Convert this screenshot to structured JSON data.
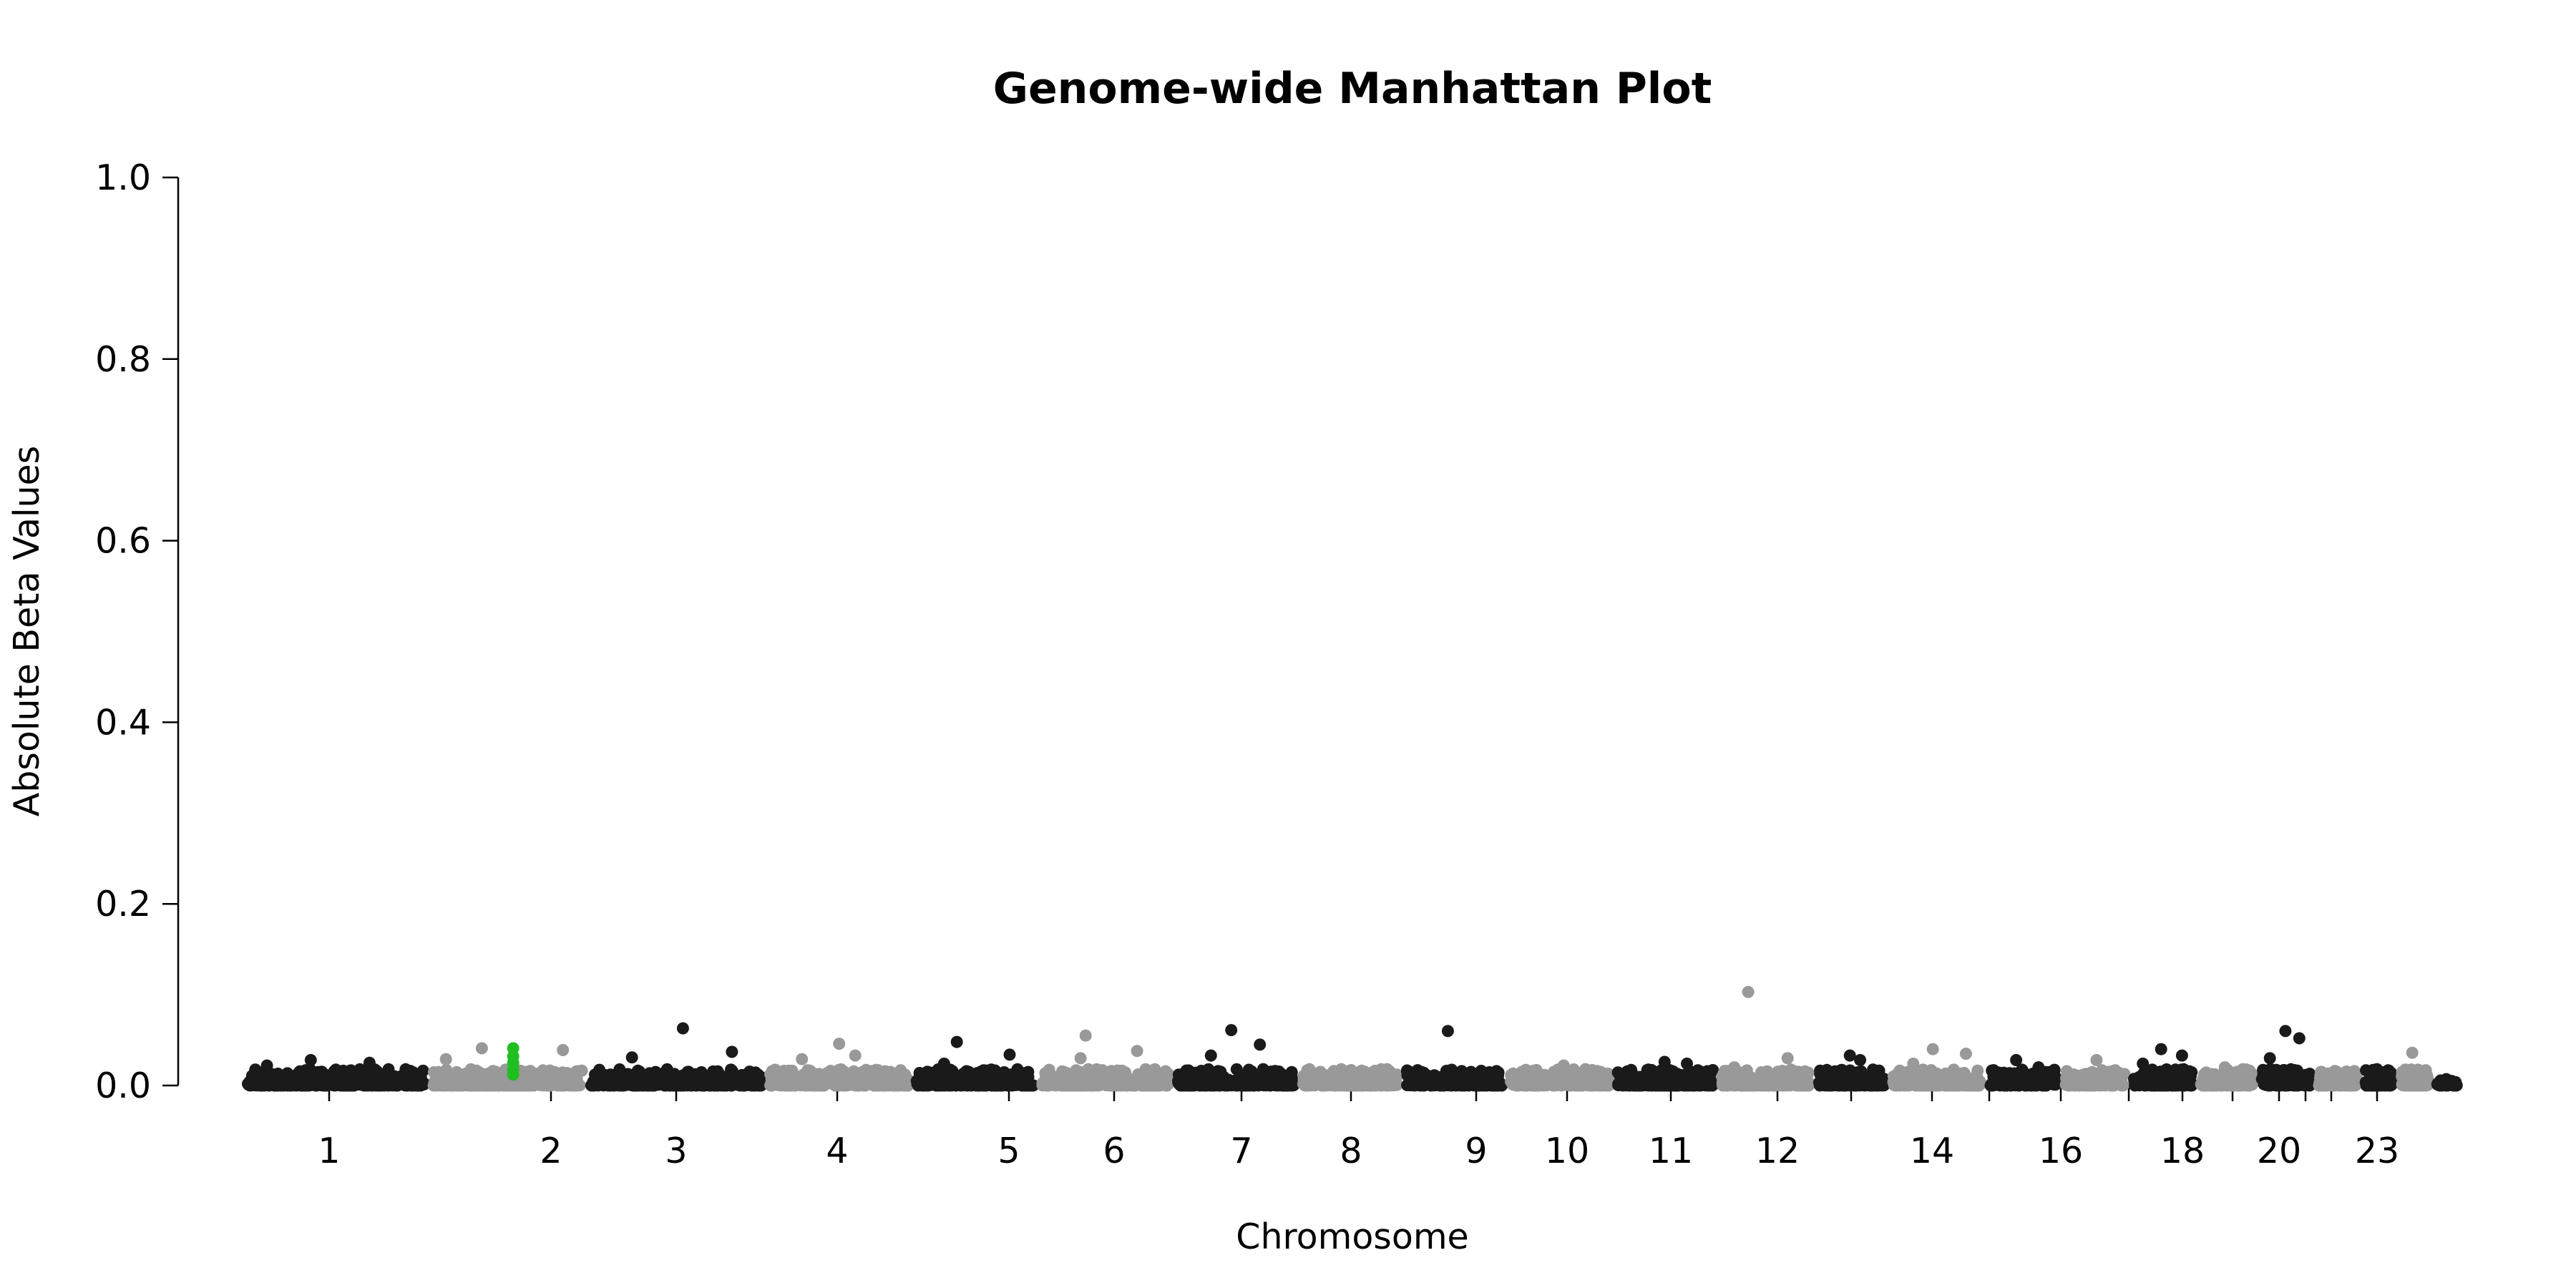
{
  "chart_data": {
    "type": "scatter",
    "title": "Genome-wide Manhattan Plot",
    "xlabel": "Chromosome",
    "ylabel": "Absolute Beta Values",
    "ylim": [
      0,
      1.0
    ],
    "yticks": [
      "0.0",
      "0.2",
      "0.4",
      "0.6",
      "0.8",
      "1.0"
    ],
    "grid": false,
    "legend": "none",
    "x_tick_labels": [
      "1",
      "2",
      "3",
      "4",
      "5",
      "6",
      "7",
      "8",
      "9",
      "10",
      "11",
      "12",
      "14",
      "16",
      "18",
      "20",
      "23"
    ],
    "colors": {
      "odd_chromosome": "#1a1a1a",
      "even_chromosome": "#999999",
      "highlight": "#1fbf1f"
    },
    "chromosomes": [
      {
        "chr": "1",
        "max_beta": 0.028,
        "peaks": [
          0.028,
          0.025,
          0.022
        ]
      },
      {
        "chr": "2",
        "max_beta": 0.041,
        "peaks": [
          0.041,
          0.039,
          0.029
        ],
        "highlight_beta": [
          0.041,
          0.032,
          0.025,
          0.018,
          0.012
        ]
      },
      {
        "chr": "3",
        "max_beta": 0.063,
        "peaks": [
          0.063,
          0.037,
          0.031
        ]
      },
      {
        "chr": "4",
        "max_beta": 0.046,
        "peaks": [
          0.046,
          0.033,
          0.029
        ]
      },
      {
        "chr": "5",
        "max_beta": 0.048,
        "peaks": [
          0.048,
          0.034,
          0.024
        ]
      },
      {
        "chr": "6",
        "max_beta": 0.055,
        "peaks": [
          0.055,
          0.038,
          0.03
        ]
      },
      {
        "chr": "7",
        "max_beta": 0.061,
        "peaks": [
          0.061,
          0.045,
          0.033
        ]
      },
      {
        "chr": "8",
        "max_beta": 0.018,
        "peaks": [
          0.018,
          0.015
        ]
      },
      {
        "chr": "9",
        "max_beta": 0.06,
        "peaks": [
          0.06,
          0.01
        ]
      },
      {
        "chr": "10",
        "max_beta": 0.022,
        "peaks": [
          0.022,
          0.018
        ]
      },
      {
        "chr": "11",
        "max_beta": 0.026,
        "peaks": [
          0.026,
          0.024
        ]
      },
      {
        "chr": "12",
        "max_beta": 0.103,
        "peaks": [
          0.103,
          0.03,
          0.02
        ]
      },
      {
        "chr": "13",
        "max_beta": 0.033,
        "peaks": [
          0.033,
          0.028
        ]
      },
      {
        "chr": "14",
        "max_beta": 0.04,
        "peaks": [
          0.04,
          0.035,
          0.024
        ]
      },
      {
        "chr": "15",
        "max_beta": 0.028,
        "peaks": [
          0.028,
          0.02
        ]
      },
      {
        "chr": "16",
        "max_beta": 0.028,
        "peaks": [
          0.028,
          0.015
        ]
      },
      {
        "chr": "17",
        "max_beta": 0.04,
        "peaks": [
          0.04,
          0.033,
          0.024
        ]
      },
      {
        "chr": "18",
        "max_beta": 0.02,
        "peaks": [
          0.02,
          0.018
        ]
      },
      {
        "chr": "19",
        "max_beta": 0.06,
        "peaks": [
          0.06,
          0.052,
          0.03
        ]
      },
      {
        "chr": "20",
        "max_beta": 0.016,
        "peaks": [
          0.016,
          0.012
        ]
      },
      {
        "chr": "21",
        "max_beta": 0.018,
        "peaks": [
          0.018,
          0.012
        ]
      },
      {
        "chr": "22",
        "max_beta": 0.036,
        "peaks": [
          0.036,
          0.015
        ]
      },
      {
        "chr": "23",
        "max_beta": 0.007,
        "peaks": [
          0.007,
          0.005
        ]
      }
    ]
  }
}
